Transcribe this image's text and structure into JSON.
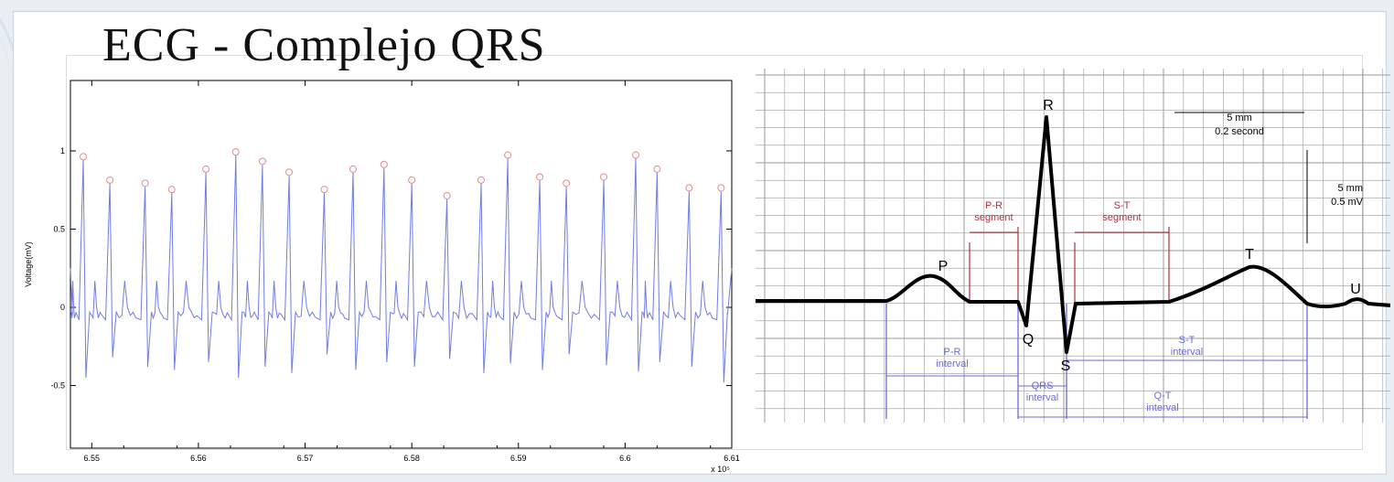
{
  "title": "ECG - Complejo QRS",
  "colors": {
    "signal": "#6f7ce8",
    "peak_marker": "#e88a8a",
    "wave": "#000000",
    "segment": "#b0303a",
    "interval": "#6b6bd9",
    "grid": "#9a9a9a"
  },
  "chart_data": [
    {
      "type": "line",
      "ylabel": "Voltage(mV)",
      "xlabel": "",
      "x_multiplier": "x 10⁵",
      "xlim": [
        6.548,
        6.61
      ],
      "ylim": [
        -0.9,
        1.45
      ],
      "x_ticks": [
        6.55,
        6.56,
        6.57,
        6.58,
        6.59,
        6.6,
        6.61
      ],
      "x_tick_labels": [
        "6.55",
        "6.56",
        "6.57",
        "6.58",
        "6.59",
        "6.6",
        "6.61"
      ],
      "y_ticks": [
        1,
        0.5,
        0,
        -0.5
      ],
      "y_tick_labels": [
        "1",
        "0.5",
        "0",
        "-0.5"
      ],
      "grid": false,
      "series": [
        {
          "peaks": [
            {
              "x": 6.5492,
              "y": 0.94
            },
            {
              "x": 6.5517,
              "y": 0.79
            },
            {
              "x": 6.555,
              "y": 0.77
            },
            {
              "x": 6.5575,
              "y": 0.73
            },
            {
              "x": 6.5607,
              "y": 0.86
            },
            {
              "x": 6.5635,
              "y": 0.97
            },
            {
              "x": 6.566,
              "y": 0.91
            },
            {
              "x": 6.5685,
              "y": 0.84
            },
            {
              "x": 6.5718,
              "y": 0.73
            },
            {
              "x": 6.5745,
              "y": 0.86
            },
            {
              "x": 6.5774,
              "y": 0.89
            },
            {
              "x": 6.58,
              "y": 0.79
            },
            {
              "x": 6.5833,
              "y": 0.69
            },
            {
              "x": 6.5865,
              "y": 0.79
            },
            {
              "x": 6.589,
              "y": 0.95
            },
            {
              "x": 6.592,
              "y": 0.81
            },
            {
              "x": 6.5945,
              "y": 0.77
            },
            {
              "x": 6.598,
              "y": 0.81
            },
            {
              "x": 6.601,
              "y": 0.95
            },
            {
              "x": 6.603,
              "y": 0.86
            },
            {
              "x": 6.606,
              "y": 0.74
            },
            {
              "x": 6.609,
              "y": 0.74
            }
          ],
          "troughs": [
            -0.45,
            -0.32,
            -0.38,
            -0.4,
            -0.35,
            -0.45,
            -0.38,
            -0.42,
            -0.3,
            -0.4,
            -0.35,
            -0.38,
            -0.33,
            -0.42,
            -0.36,
            -0.4,
            -0.3,
            -0.37,
            -0.41,
            -0.35,
            -0.38,
            -0.48
          ],
          "baseline": -0.05
        }
      ]
    },
    {
      "type": "diagram",
      "wave_labels": {
        "P": "P",
        "Q": "Q",
        "R": "R",
        "S": "S",
        "T": "T",
        "U": "U"
      },
      "segments": [
        {
          "label_line1": "P-R",
          "label_line2": "segment"
        },
        {
          "label_line1": "S-T",
          "label_line2": "segment"
        }
      ],
      "intervals": [
        {
          "label_line1": "P-R",
          "label_line2": "interval"
        },
        {
          "label_line1": "QRS",
          "label_line2": "interval"
        },
        {
          "label_line1": "S-T",
          "label_line2": "interval"
        },
        {
          "label_line1": "Q-T",
          "label_line2": "interval"
        }
      ],
      "scale": {
        "time": {
          "line1": "5 mm",
          "line2": "0.2 second"
        },
        "voltage": {
          "line1": "5 mm",
          "line2": "0.5 mV"
        }
      }
    }
  ]
}
